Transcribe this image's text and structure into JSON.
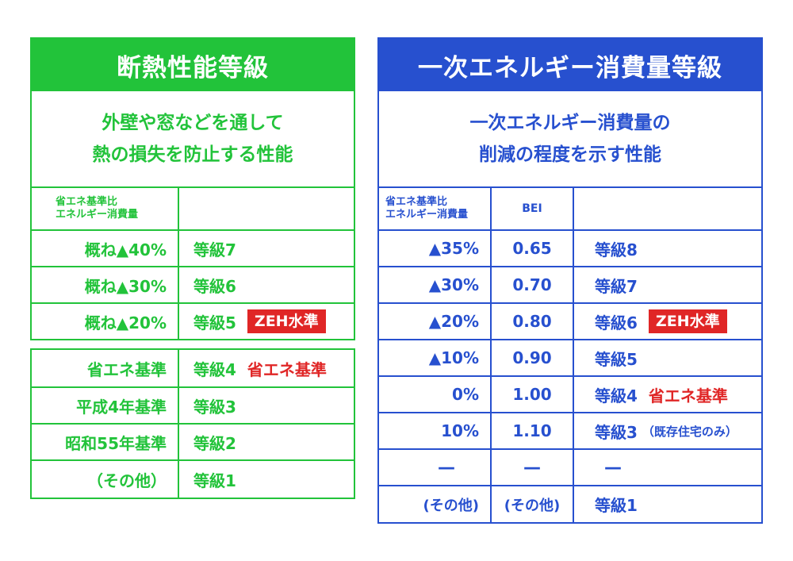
{
  "colors": {
    "green": "#22c33a",
    "blue": "#2750cf",
    "red": "#e02626"
  },
  "insulation": {
    "title": "断熱性能等級",
    "desc1": "外壁や窓などを通して",
    "desc2": "熱の損失を防止する性能",
    "col_header_1": "省エネ基準比",
    "col_header_2": "エネルギー消費量",
    "rows_top": [
      {
        "ratio": "概ね▲40%",
        "grade": "等級7"
      },
      {
        "ratio": "概ね▲30%",
        "grade": "等級6"
      },
      {
        "ratio": "概ね▲20%",
        "grade": "等級5",
        "badge": "ZEH水準"
      }
    ],
    "rows_bottom": [
      {
        "label": "省エネ基準",
        "grade": "等級4",
        "tag": "省エネ基準"
      },
      {
        "label": "平成4年基準",
        "grade": "等級3"
      },
      {
        "label": "昭和55年基準",
        "grade": "等級2"
      },
      {
        "label": "（その他）",
        "grade": "等級1"
      }
    ]
  },
  "energy": {
    "title": "一次エネルギー消費量等級",
    "desc1": "一次エネルギー消費量の",
    "desc2": "削減の程度を示す性能",
    "col_header_1": "省エネ基準比",
    "col_header_2": "エネルギー消費量",
    "col_header_bei": "BEI",
    "rows": [
      {
        "ratio": "▲35%",
        "bei": "0.65",
        "grade": "等級8"
      },
      {
        "ratio": "▲30%",
        "bei": "0.70",
        "grade": "等級7"
      },
      {
        "ratio": "▲20%",
        "bei": "0.80",
        "grade": "等級6",
        "badge": "ZEH水準"
      },
      {
        "ratio": "▲10%",
        "bei": "0.90",
        "grade": "等級5"
      },
      {
        "ratio": "0%",
        "bei": "1.00",
        "grade": "等級4",
        "tag": "省エネ基準"
      },
      {
        "ratio": "10%",
        "bei": "1.10",
        "grade": "等級3",
        "note": "（既存住宅のみ）"
      },
      {
        "ratio": "—",
        "bei": "—",
        "grade": "—"
      },
      {
        "ratio": "(その他)",
        "bei": "(その他)",
        "grade": "等級1"
      }
    ]
  }
}
